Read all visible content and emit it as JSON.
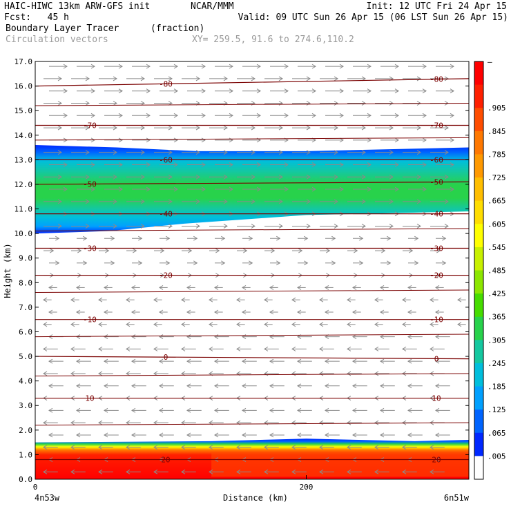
{
  "header": {
    "model": "HAIC-HIWC 13km ARW-GFS init",
    "org": "NCAR/MMM",
    "init": "Init: 12 UTC Fri 24 Apr 15",
    "fcst": "Fcst:   45 h",
    "valid": "Valid: 09 UTC Sun 26 Apr 15 (06 LST Sun 26 Apr 15)",
    "field": "Boundary Layer Tracer",
    "units": "(fraction)",
    "vectors": "Circulation vectors",
    "xy": "XY= 259.5, 91.6 to 274.6,110.2"
  },
  "chart_data": {
    "type": "heatmap",
    "title": "Boundary Layer Tracer",
    "ylabel": "Height (km)",
    "xlabel": "Distance (km)",
    "ylim": [
      0,
      17
    ],
    "xlim": [
      0,
      320
    ],
    "y_ticks": [
      "0.0",
      "1.0",
      "2.0",
      "3.0",
      "4.0",
      "5.0",
      "6.0",
      "7.0",
      "8.0",
      "9.0",
      "10.0",
      "11.0",
      "12.0",
      "13.0",
      "14.0",
      "15.0",
      "16.0",
      "17.0"
    ],
    "x_ticks": [
      {
        "v": 0,
        "label": "0"
      },
      {
        "v": 200,
        "label": "200"
      }
    ],
    "x_endpoints": {
      "left": "4n53w",
      "right": "6n51w"
    },
    "colorbar": {
      "labels": [
        "–",
        ".905",
        ".845",
        ".785",
        ".725",
        ".665",
        ".605",
        ".545",
        ".485",
        ".425",
        ".365",
        ".305",
        ".245",
        ".185",
        ".125",
        ".065",
        ".005"
      ],
      "colors": [
        "#ff0000",
        "#ff2000",
        "#ff4d00",
        "#ff7800",
        "#ff9900",
        "#ffbe00",
        "#ffdd00",
        "#ffff00",
        "#c8f000",
        "#8ce600",
        "#46dc00",
        "#28d24b",
        "#14c8a0",
        "#00bedc",
        "#00a0ff",
        "#0064ff",
        "#0028ff",
        "#ffffff"
      ]
    },
    "tracer_layers": [
      {
        "name": "upper-plume",
        "bottom_left": 10.0,
        "bottom_right": 10.9,
        "top_left": 13.6,
        "top_right": 13.5
      },
      {
        "name": "boundary-layer",
        "bottom": 0.0,
        "top_left": 1.5,
        "top_right": 1.6
      }
    ],
    "isotherms": [
      {
        "label": "-80",
        "left": 16.0,
        "right": 16.3
      },
      {
        "label": "-70",
        "left": 14.4,
        "right": 14.4
      },
      {
        "label": "-60",
        "left": 13.0,
        "right": 13.0
      },
      {
        "label": "-50",
        "left": 12.0,
        "right": 12.1
      },
      {
        "label": "-40",
        "left": 10.8,
        "right": 10.8
      },
      {
        "label": "-30",
        "left": 9.4,
        "right": 9.4
      },
      {
        "label": "-20",
        "left": 8.3,
        "right": 8.3
      },
      {
        "label": "-10",
        "left": 6.5,
        "right": 6.5
      },
      {
        "label": "0",
        "left": 5.0,
        "right": 4.9
      },
      {
        "label": "10",
        "left": 3.3,
        "right": 3.3
      },
      {
        "label": "20",
        "left": 0.8,
        "right": 0.8
      }
    ]
  }
}
